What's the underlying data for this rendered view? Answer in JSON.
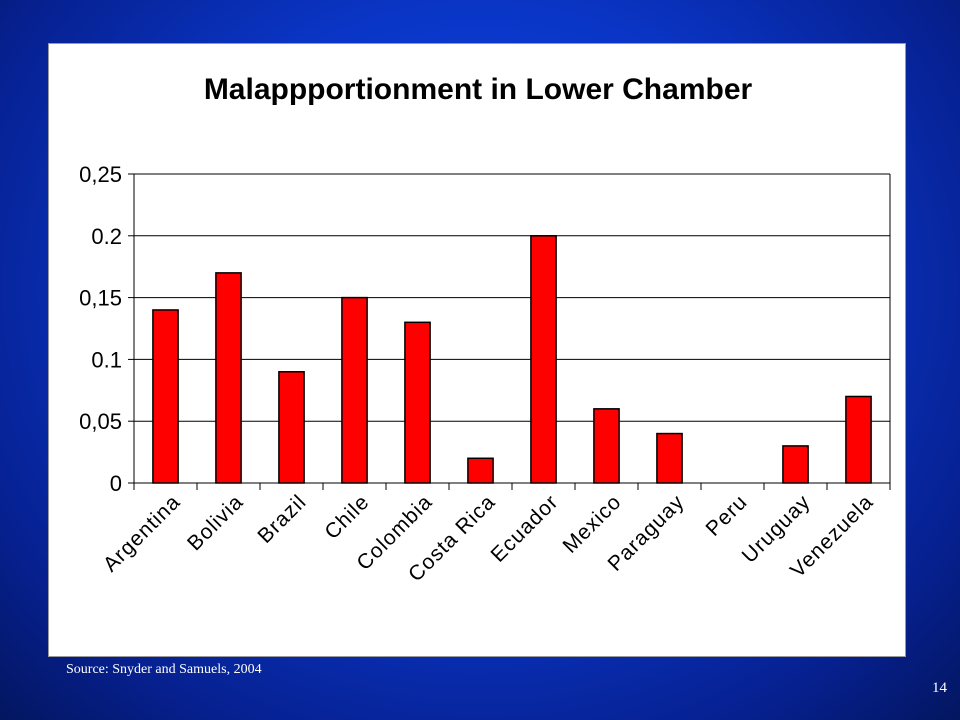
{
  "slide": {
    "source_note": "Source: Snyder and Samuels, 2004",
    "number": "14"
  },
  "colors": {
    "bar_fill": "#ff0000",
    "bar_stroke": "#000000",
    "background": "#0a36c8"
  },
  "chart_data": {
    "type": "bar",
    "title": "Malappportionment in Lower Chamber",
    "xlabel": "",
    "ylabel": "",
    "ylim": [
      0,
      0.25
    ],
    "yticks": [
      0,
      0.05,
      0.1,
      0.15,
      0.2,
      0.25
    ],
    "ytick_labels": [
      "0",
      "0,05",
      "0.1",
      "0,15",
      "0.2",
      "0,25"
    ],
    "grid": true,
    "legend": "none",
    "categories": [
      "Argentina",
      "Bolivia",
      "Brazil",
      "Chile",
      "Colombia",
      "Costa Rica",
      "Ecuador",
      "Mexico",
      "Paraguay",
      "Peru",
      "Uruguay",
      "Venezuela"
    ],
    "values": [
      0.14,
      0.17,
      0.09,
      0.15,
      0.13,
      0.02,
      0.2,
      0.06,
      0.04,
      0,
      0.03,
      0.07
    ]
  }
}
